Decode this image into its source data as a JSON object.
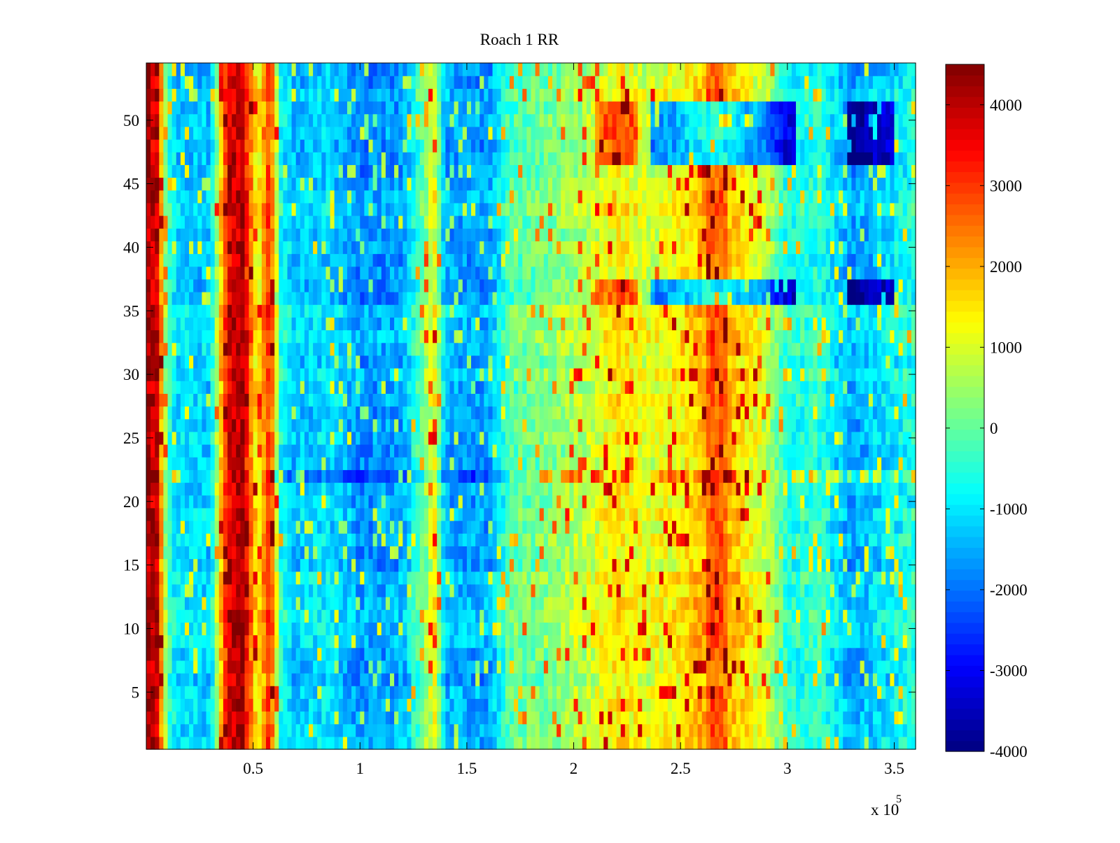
{
  "chart_data": {
    "type": "heatmap",
    "title": "Roach 1 RR",
    "xlabel": "",
    "ylabel": "",
    "x_exponent_label": "x 10",
    "x_exponent_power": "5",
    "x_tick_labels": [
      "0.5",
      "1",
      "1.5",
      "2",
      "2.5",
      "3",
      "3.5"
    ],
    "x_tick_values": [
      0.5,
      1,
      1.5,
      2,
      2.5,
      3,
      3.5
    ],
    "xlim": [
      0.0,
      3.6
    ],
    "y_tick_labels": [
      "5",
      "10",
      "15",
      "20",
      "25",
      "30",
      "35",
      "40",
      "45",
      "50"
    ],
    "y_tick_values": [
      5,
      10,
      15,
      20,
      25,
      30,
      35,
      40,
      45,
      50
    ],
    "ylim": [
      0.5,
      54.5
    ],
    "rows": 54,
    "colorbar_tick_labels": [
      "4000",
      "3000",
      "2000",
      "1000",
      "0",
      "-1000",
      "-2000",
      "-3000",
      "-4000"
    ],
    "colorbar_tick_values": [
      4000,
      3000,
      2000,
      1000,
      0,
      -1000,
      -2000,
      -3000,
      -4000
    ],
    "clim": [
      -4000,
      4500
    ],
    "colormap": "jet",
    "colormap_stops": [
      "#00007f",
      "#0000ff",
      "#00ffff",
      "#ffff00",
      "#ff0000",
      "#7f0000"
    ],
    "column_profile": {
      "description_x_units": "x in units of 10^5",
      "x": [
        0.0,
        0.05,
        0.1,
        0.15,
        0.3,
        0.38,
        0.45,
        0.52,
        0.58,
        0.63,
        0.7,
        0.85,
        1.0,
        1.2,
        1.35,
        1.4,
        1.6,
        1.7,
        1.9,
        2.1,
        2.2,
        2.35,
        2.5,
        2.65,
        2.75,
        2.9,
        3.0,
        3.15,
        3.3,
        3.4,
        3.6
      ],
      "v": [
        4200,
        3800,
        -300,
        -1100,
        -1200,
        3600,
        4200,
        1200,
        3300,
        -600,
        -1300,
        -1000,
        -1700,
        -1500,
        1200,
        -1400,
        -1600,
        -100,
        300,
        900,
        1500,
        1000,
        1400,
        2200,
        1800,
        900,
        -600,
        -400,
        -1600,
        -1200,
        -500
      ]
    },
    "highlight_rows": {
      "rows": [
        36,
        37,
        47,
        48,
        49,
        50,
        51
      ],
      "description": "rows where the 2.1-2.3 band is red and 2.4-3.0 / 3.3-3.5 bands are deep blue"
    },
    "dark_row": 22,
    "colorbar_ticks_note": "jet colormap legend"
  }
}
